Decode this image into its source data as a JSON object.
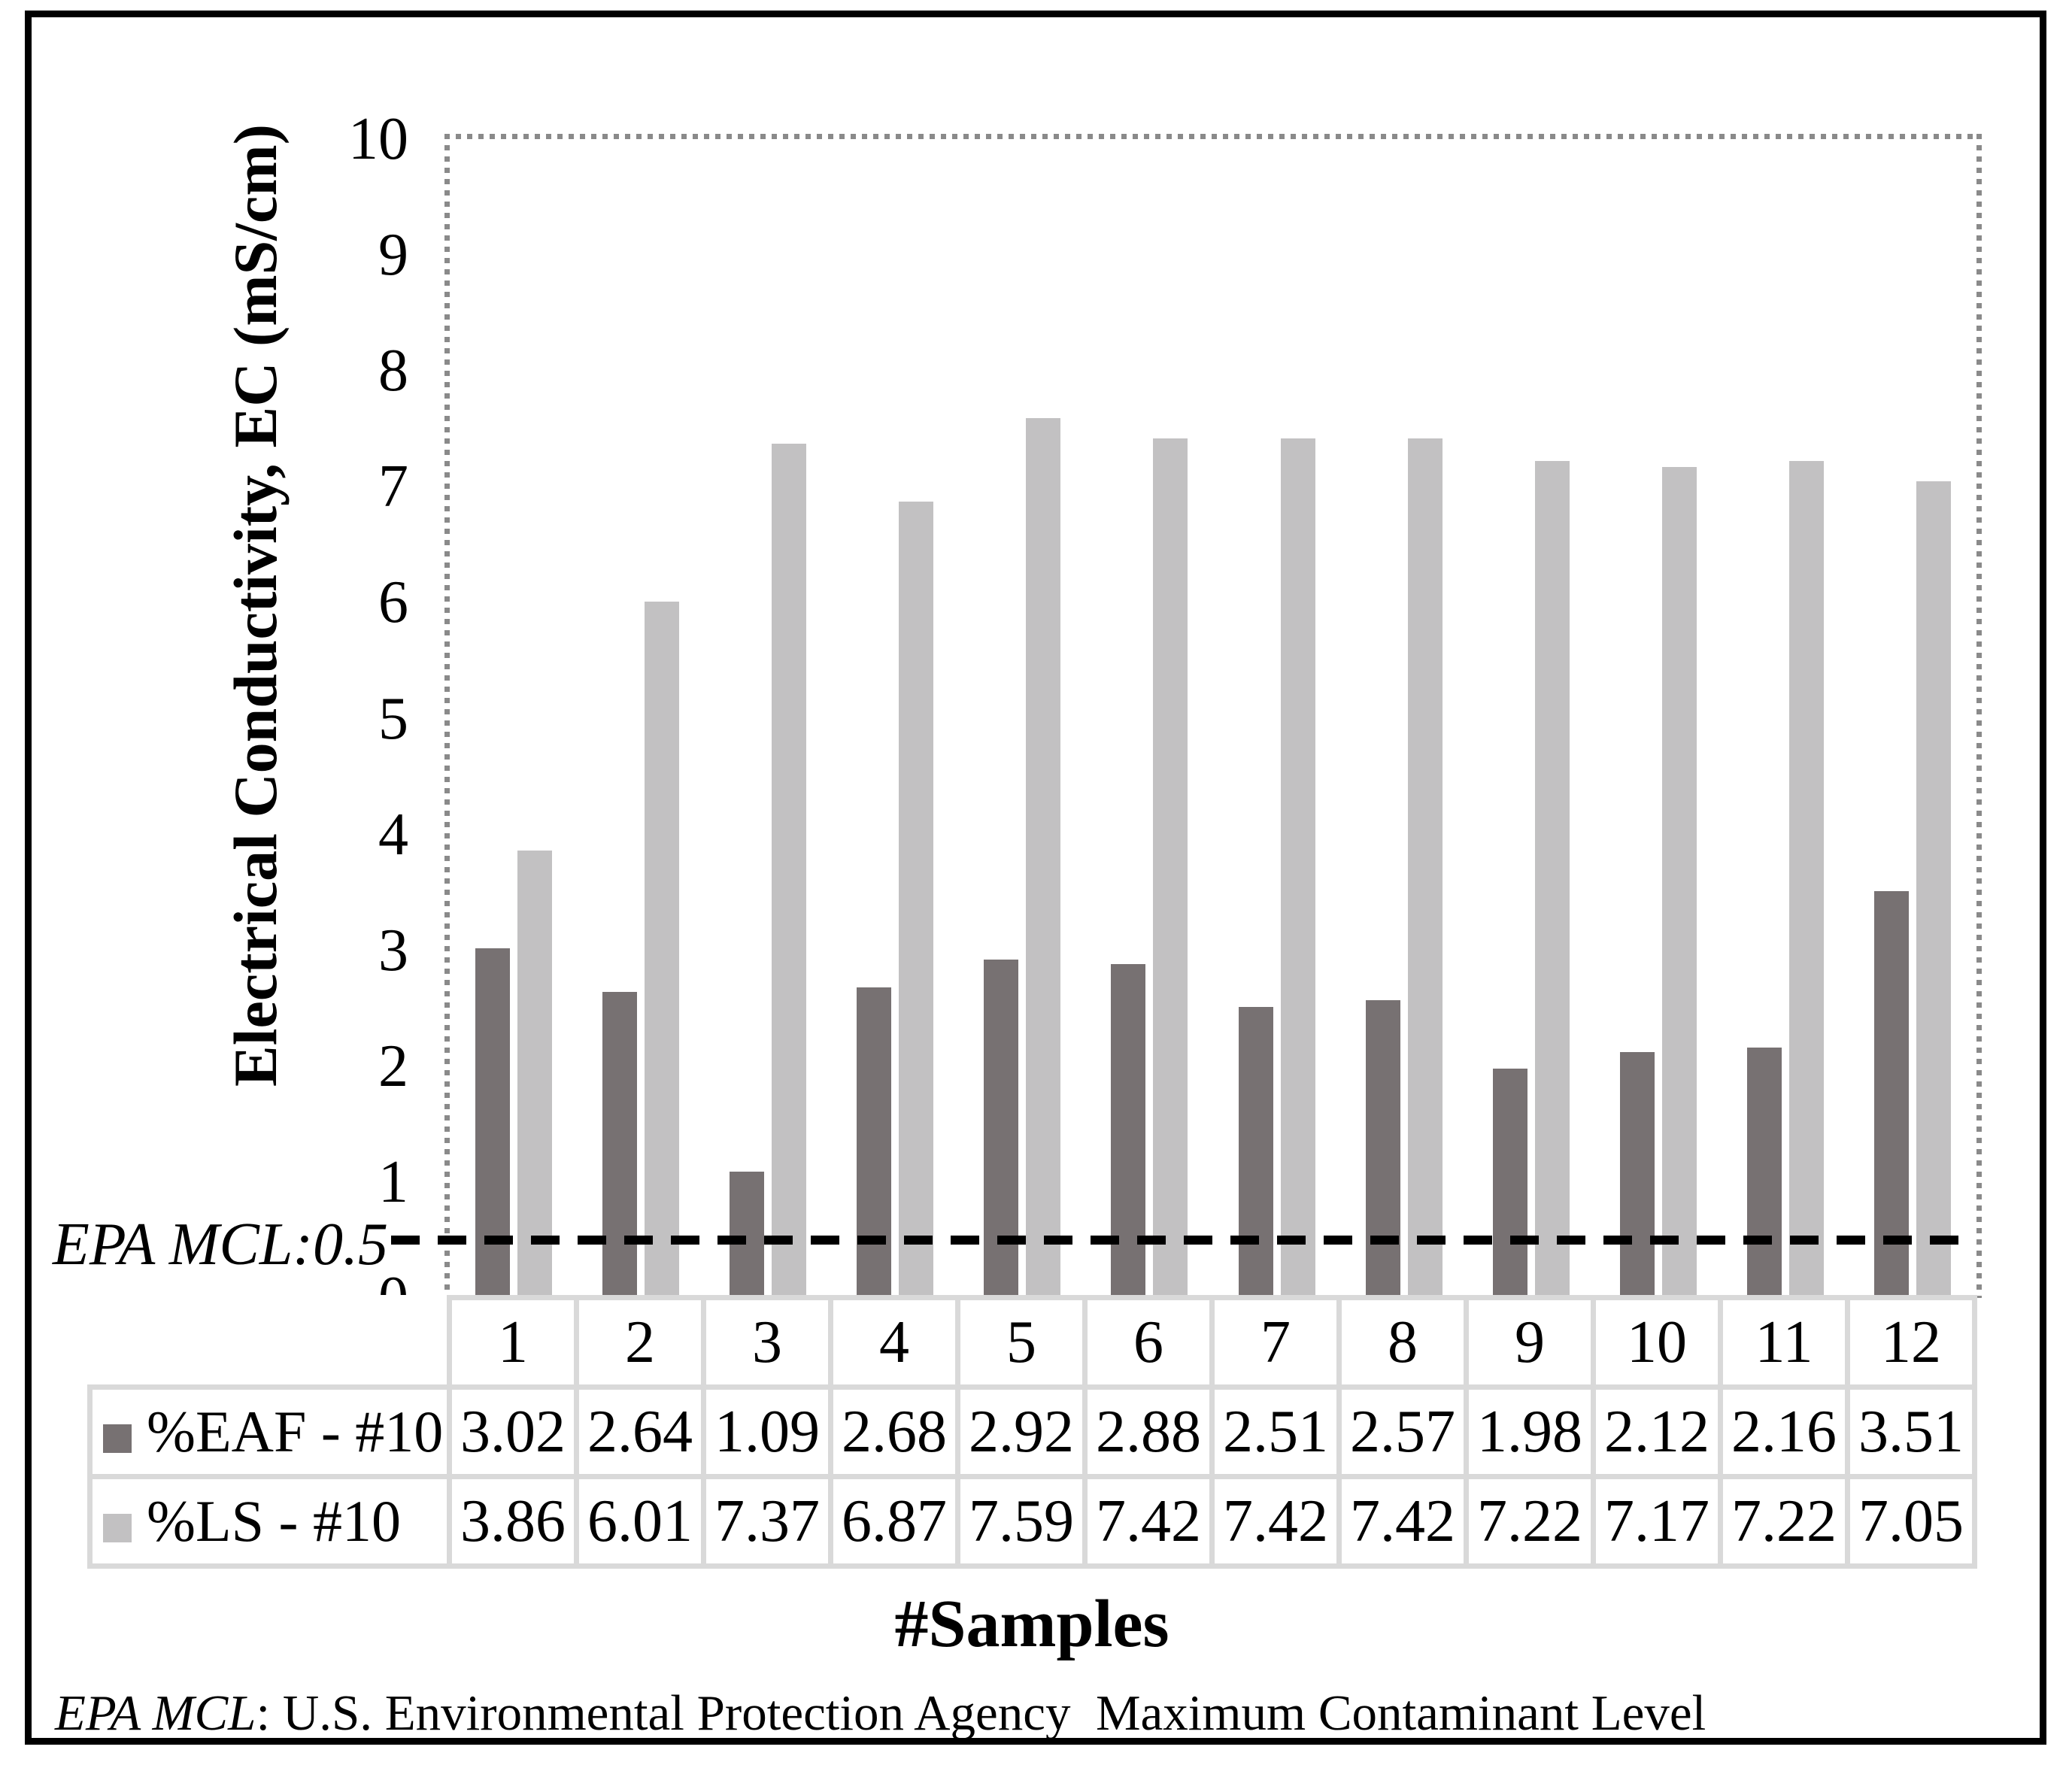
{
  "chart_data": {
    "type": "bar",
    "categories": [
      "1",
      "2",
      "3",
      "4",
      "5",
      "6",
      "7",
      "8",
      "9",
      "10",
      "11",
      "12"
    ],
    "series": [
      {
        "name": "%EAF - #10",
        "color": "#777172",
        "values": [
          3.02,
          2.64,
          1.09,
          2.68,
          2.92,
          2.88,
          2.51,
          2.57,
          1.98,
          2.12,
          2.16,
          3.51
        ]
      },
      {
        "name": "%LS - #10",
        "color": "#C2C1C2",
        "values": [
          3.86,
          6.01,
          7.37,
          6.87,
          7.59,
          7.42,
          7.42,
          7.42,
          7.22,
          7.17,
          7.22,
          7.05
        ]
      }
    ],
    "title": "",
    "xlabel": "#Samples",
    "ylabel": "Electrical Conductivity, EC (mS/cm)",
    "ylim": [
      0,
      10
    ],
    "yticks": [
      0,
      1,
      2,
      3,
      4,
      5,
      6,
      7,
      8,
      9,
      10
    ],
    "grid": false,
    "plot_border_style": "dotted",
    "legend_position": "table-left",
    "value_decimals": 2,
    "ref_line": {
      "value": 0.5,
      "label": "EPA MCL:0.5",
      "color": "#000000",
      "style": "dashed"
    }
  },
  "footnote": {
    "term": "EPA MCL",
    "rest": ": U.S. Environmental Protection Agency  Maximum Contaminant Level"
  },
  "frame": {
    "border_color": "#000000",
    "background": "#ffffff"
  },
  "table_style": {
    "border_color": "#D9D9D9"
  }
}
